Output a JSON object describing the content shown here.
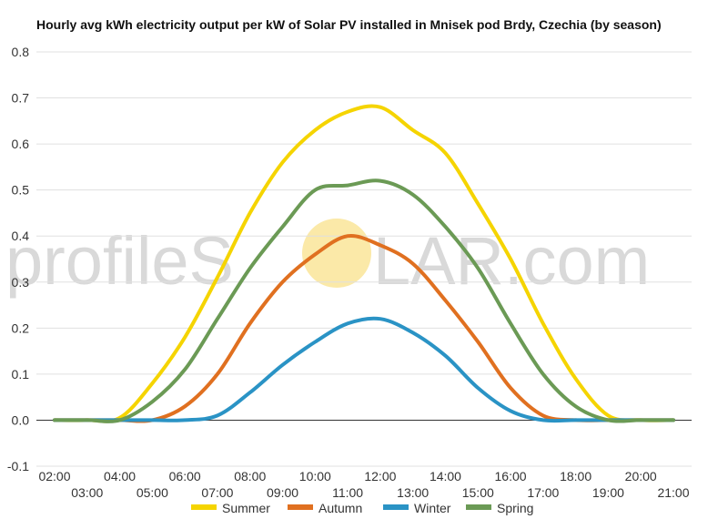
{
  "chart_data": {
    "type": "line",
    "title": "Hourly avg kWh electricity output per kW of Solar PV installed in Mnisek pod Brdy, Czechia (by season)",
    "xlabel": "",
    "ylabel": "",
    "ylim": [
      -0.1,
      0.8
    ],
    "yticks": [
      "0.8",
      "0.7",
      "0.6",
      "0.5",
      "0.4",
      "0.3",
      "0.2",
      "0.1",
      "0.0",
      "-0.1"
    ],
    "grid": true,
    "legend_position": "bottom",
    "categories": [
      "02:00",
      "03:00",
      "04:00",
      "05:00",
      "06:00",
      "07:00",
      "08:00",
      "09:00",
      "10:00",
      "11:00",
      "12:00",
      "13:00",
      "14:00",
      "15:00",
      "16:00",
      "17:00",
      "18:00",
      "19:00",
      "20:00",
      "21:00"
    ],
    "series": [
      {
        "name": "Summer",
        "color": "#f5d400",
        "values": [
          0.0,
          0.0,
          0.005,
          0.08,
          0.18,
          0.31,
          0.45,
          0.56,
          0.63,
          0.67,
          0.68,
          0.63,
          0.58,
          0.47,
          0.35,
          0.21,
          0.09,
          0.01,
          0.0,
          0.0
        ]
      },
      {
        "name": "Autumn",
        "color": "#e07020",
        "values": [
          0.0,
          0.0,
          0.0,
          0.0,
          0.03,
          0.1,
          0.21,
          0.3,
          0.36,
          0.4,
          0.38,
          0.34,
          0.26,
          0.17,
          0.07,
          0.01,
          0.0,
          0.0,
          0.0,
          0.0
        ]
      },
      {
        "name": "Winter",
        "color": "#2a93c5",
        "values": [
          0.0,
          0.0,
          0.0,
          0.0,
          0.0,
          0.01,
          0.06,
          0.12,
          0.17,
          0.21,
          0.22,
          0.19,
          0.14,
          0.07,
          0.02,
          0.0,
          0.0,
          0.0,
          0.0,
          0.0
        ]
      },
      {
        "name": "Spring",
        "color": "#6b9a55",
        "values": [
          0.0,
          0.0,
          0.0,
          0.04,
          0.11,
          0.22,
          0.33,
          0.42,
          0.5,
          0.51,
          0.52,
          0.49,
          0.42,
          0.33,
          0.21,
          0.1,
          0.03,
          0.0,
          0.0,
          0.0
        ]
      }
    ]
  },
  "watermark": {
    "text_left": "profileS",
    "text_right": "LAR.com",
    "sun_color": "#fbe9a8"
  }
}
